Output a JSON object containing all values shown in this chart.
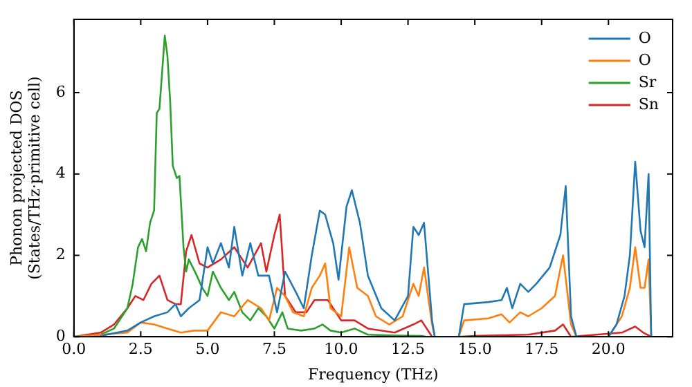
{
  "chart_data": {
    "type": "line",
    "xlabel": "Frequency (THz)",
    "ylabel": "Phonon projected DOS\n(States/THz·primitive cell)",
    "xlim": [
      0,
      22.4
    ],
    "ylim": [
      0,
      7.8
    ],
    "xticks": [
      {
        "value": 0,
        "label": "0.0"
      },
      {
        "value": 2.5,
        "label": "2.5"
      },
      {
        "value": 5,
        "label": "5.0"
      },
      {
        "value": 7.5,
        "label": "7.5"
      },
      {
        "value": 10,
        "label": "10.0"
      },
      {
        "value": 12.5,
        "label": "12.5"
      },
      {
        "value": 15,
        "label": "15.0"
      },
      {
        "value": 17.5,
        "label": "17.5"
      },
      {
        "value": 20,
        "label": "20.0"
      }
    ],
    "yticks": [
      0,
      2,
      4,
      6
    ],
    "grid": false,
    "legend": "top right",
    "marker": "none",
    "line_style": "solid",
    "series": [
      {
        "name": "O",
        "color": "#1f77b4",
        "x": [
          1,
          2,
          2.5,
          3,
          3.5,
          3.8,
          4.0,
          4.3,
          4.7,
          5.0,
          5.2,
          5.5,
          5.8,
          6.0,
          6.3,
          6.6,
          6.9,
          7.3,
          7.6,
          7.9,
          8.3,
          8.6,
          8.9,
          9.2,
          9.4,
          9.7,
          9.9,
          10.2,
          10.4,
          10.7,
          11.0,
          11.5,
          12.0,
          12.5,
          12.7,
          12.9,
          13.1,
          13.4,
          13.5,
          14.4,
          14.6,
          15.5,
          16.0,
          16.2,
          16.4,
          16.7,
          17.0,
          17.3,
          17.8,
          18.2,
          18.4,
          18.6,
          18.8,
          20.0,
          20.3,
          20.6,
          20.8,
          21.0,
          21.2,
          21.35,
          21.5,
          21.6
        ],
        "values": [
          0.02,
          0.15,
          0.35,
          0.5,
          0.6,
          0.8,
          0.5,
          0.7,
          0.9,
          2.2,
          1.8,
          2.3,
          1.7,
          2.7,
          1.5,
          2.3,
          1.5,
          1.5,
          0.6,
          1.6,
          1.1,
          0.7,
          2.0,
          3.1,
          3.0,
          2.3,
          1.4,
          3.2,
          3.6,
          2.8,
          1.5,
          0.7,
          0.4,
          1.0,
          2.7,
          2.5,
          2.8,
          0.4,
          0,
          0,
          0.8,
          0.85,
          0.9,
          1.2,
          0.7,
          1.3,
          1.1,
          1.3,
          1.7,
          2.5,
          3.7,
          0.5,
          0,
          0,
          0.3,
          1.0,
          2.0,
          4.3,
          2.6,
          2.2,
          4.0,
          0
        ]
      },
      {
        "name": "O",
        "color": "#ff7f0e",
        "x": [
          0,
          2,
          2.5,
          3,
          3.5,
          4,
          4.5,
          5,
          5.5,
          6,
          6.5,
          7,
          7.3,
          7.6,
          7.9,
          8.2,
          8.6,
          8.9,
          9.2,
          9.4,
          9.6,
          10.0,
          10.3,
          10.6,
          11.0,
          11.3,
          11.8,
          12.3,
          12.7,
          12.9,
          13.1,
          13.4,
          13.5,
          14.4,
          14.6,
          15.5,
          16.0,
          16.3,
          16.7,
          17.0,
          17.5,
          18.0,
          18.3,
          18.6,
          18.8,
          20.0,
          20.5,
          20.8,
          21.0,
          21.2,
          21.35,
          21.5,
          21.6
        ],
        "values": [
          0,
          0.1,
          0.35,
          0.3,
          0.2,
          0.1,
          0.15,
          0.15,
          0.6,
          0.5,
          0.9,
          0.7,
          0.4,
          1.2,
          1.0,
          0.6,
          0.5,
          1.2,
          1.5,
          1.8,
          0.7,
          0.5,
          2.2,
          1.2,
          1.0,
          0.5,
          0.3,
          0.5,
          1.3,
          1.0,
          1.7,
          0.3,
          0,
          0,
          0.4,
          0.45,
          0.55,
          0.35,
          0.6,
          0.5,
          0.7,
          1.0,
          2.0,
          0.3,
          0,
          0,
          0.5,
          1.2,
          2.2,
          1.2,
          1.2,
          1.9,
          0
        ]
      },
      {
        "name": "Sr",
        "color": "#2ca02c",
        "x": [
          0,
          1,
          1.5,
          2,
          2.2,
          2.4,
          2.55,
          2.7,
          2.85,
          3.0,
          3.1,
          3.2,
          3.3,
          3.4,
          3.5,
          3.6,
          3.7,
          3.85,
          3.95,
          4.1,
          4.2,
          4.3,
          4.6,
          4.8,
          5.0,
          5.2,
          5.5,
          5.8,
          6.0,
          6.3,
          6.6,
          6.9,
          7.2,
          7.5,
          7.8,
          8.0,
          8.5,
          9.0,
          9.3,
          9.6,
          10,
          10.5,
          11,
          12,
          13,
          13.2,
          21.6
        ],
        "values": [
          0,
          0.05,
          0.2,
          0.7,
          1.3,
          2.2,
          2.4,
          2.1,
          2.8,
          3.1,
          5.5,
          5.6,
          6.5,
          7.4,
          6.9,
          5.8,
          4.2,
          3.9,
          3.95,
          2.2,
          1.6,
          1.9,
          1.5,
          1.2,
          1.0,
          1.6,
          1.2,
          0.9,
          1.1,
          0.6,
          0.4,
          0.7,
          0.5,
          0.2,
          0.6,
          0.2,
          0.15,
          0.2,
          0.3,
          0.15,
          0.1,
          0.2,
          0.05,
          0.03,
          0.02,
          0,
          0
        ]
      },
      {
        "name": "Sn",
        "color": "#d62728",
        "x": [
          0,
          1,
          1.5,
          2,
          2.3,
          2.6,
          2.9,
          3.2,
          3.5,
          3.8,
          4.0,
          4.2,
          4.4,
          4.7,
          5.0,
          5.5,
          6.0,
          6.5,
          7.0,
          7.2,
          7.5,
          7.7,
          7.9,
          8.3,
          8.7,
          9.0,
          9.5,
          10.0,
          10.5,
          11,
          12,
          12.7,
          13,
          13.4,
          14.4,
          15,
          17,
          18,
          18.3,
          18.6,
          20.5,
          21.0,
          21.3,
          21.6
        ],
        "values": [
          0,
          0.1,
          0.3,
          0.7,
          1.0,
          0.9,
          1.3,
          1.5,
          0.9,
          0.8,
          0.8,
          2.1,
          2.5,
          1.8,
          1.7,
          1.9,
          2.2,
          1.7,
          2.3,
          1.6,
          2.5,
          3.0,
          1.0,
          0.6,
          0.6,
          0.9,
          0.9,
          0.4,
          0.4,
          0.2,
          0.1,
          0.3,
          0.4,
          0,
          0,
          0.02,
          0.05,
          0.15,
          0.3,
          0,
          0.1,
          0.25,
          0.1,
          0
        ]
      }
    ]
  }
}
